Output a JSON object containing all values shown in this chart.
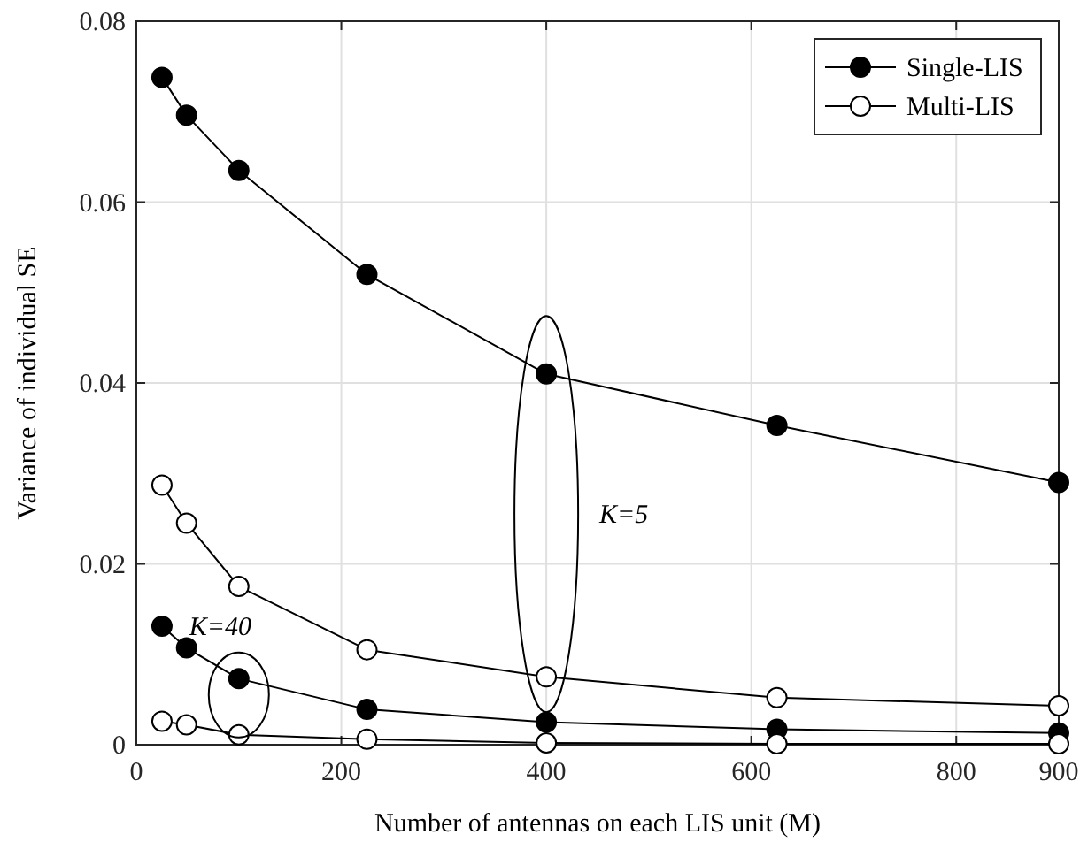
{
  "chart_data": {
    "type": "line",
    "xlabel": "Number of antennas on each LIS unit (M)",
    "ylabel": "Variance of individual SE",
    "x": [
      25,
      49,
      100,
      225,
      400,
      625,
      900
    ],
    "series": [
      {
        "name": "Single-LIS",
        "color": "#000000",
        "values": [
          0.0738,
          0.0696,
          0.0635,
          0.052,
          0.041,
          0.0353,
          0.029
        ]
      },
      {
        "name": "Multi-LIS",
        "color": "#000000",
        "values": [
          0.0287,
          0.0245,
          0.0175,
          0.0105,
          0.0075,
          0.0052,
          0.0043
        ]
      },
      {
        "color": "#000000",
        "values": [
          0.0131,
          0.0107,
          0.0073,
          0.0039,
          0.0025,
          0.0017,
          0.0013
        ]
      },
      {
        "color": "#000000",
        "values": [
          0.0026,
          0.0022,
          0.0011,
          0.0006,
          0.0002,
          0.0001,
          0.0001
        ]
      }
    ],
    "xlim": [
      0,
      900
    ],
    "xticks": [
      0,
      200,
      400,
      600,
      800,
      900
    ],
    "ylim": [
      0,
      0.08
    ],
    "yticks": [
      0,
      0.02,
      0.04,
      0.06,
      0.08
    ],
    "grid": true,
    "legend": "top right",
    "marker": "circle",
    "line_style": "solid",
    "annotations": [
      "K=5",
      "K=40"
    ]
  }
}
